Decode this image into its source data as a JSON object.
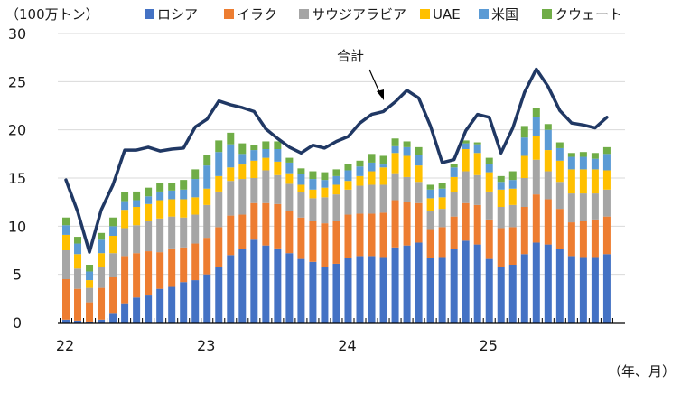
{
  "chart_data": {
    "type": "bar",
    "stacked": true,
    "unit_label": "（100万トン）",
    "xlabel": "（年、月）",
    "ylim": [
      0,
      30
    ],
    "yticks": [
      0,
      5,
      10,
      15,
      20,
      25,
      30
    ],
    "grid": true,
    "legend_position": "top",
    "xtick_labels": [
      {
        "label": "22",
        "index": 0
      },
      {
        "label": "23",
        "index": 12
      },
      {
        "label": "24",
        "index": 24
      },
      {
        "label": "25",
        "index": 36
      }
    ],
    "categories": [
      "2022-01",
      "2022-02",
      "2022-03",
      "2022-04",
      "2022-05",
      "2022-06",
      "2022-07",
      "2022-08",
      "2022-09",
      "2022-10",
      "2022-11",
      "2022-12",
      "2023-01",
      "2023-02",
      "2023-03",
      "2023-04",
      "2023-05",
      "2023-06",
      "2023-07",
      "2023-08",
      "2023-09",
      "2023-10",
      "2023-11",
      "2023-12",
      "2024-01",
      "2024-02",
      "2024-03",
      "2024-04",
      "2024-05",
      "2024-06",
      "2024-07",
      "2024-08",
      "2024-09",
      "2024-10",
      "2024-11",
      "2024-12",
      "2025-01",
      "2025-02",
      "2025-03",
      "2025-04",
      "2025-05",
      "2025-06",
      "2025-07",
      "2025-08",
      "2025-09",
      "2025-10",
      "2025-11"
    ],
    "series": [
      {
        "name": "ロシア",
        "color": "#4472C4",
        "values": [
          0.3,
          0.2,
          0.1,
          0.3,
          1.0,
          2.0,
          2.6,
          2.9,
          3.5,
          3.7,
          4.2,
          4.4,
          5.0,
          5.8,
          7.0,
          7.6,
          8.6,
          8.0,
          7.7,
          7.2,
          6.6,
          6.3,
          5.8,
          6.1,
          6.7,
          6.9,
          6.9,
          6.8,
          7.8,
          8.0,
          8.3,
          6.7,
          6.8,
          7.6,
          8.5,
          8.1,
          6.6,
          5.8,
          6.0,
          7.1,
          8.3,
          8.1,
          7.6,
          6.9,
          6.8,
          6.8,
          7.1
        ]
      },
      {
        "name": "イラク",
        "color": "#ED7D31",
        "values": [
          4.2,
          3.3,
          2.0,
          3.3,
          3.7,
          4.9,
          4.6,
          4.5,
          3.8,
          4.0,
          3.6,
          3.8,
          3.8,
          4.1,
          4.1,
          3.6,
          3.8,
          4.4,
          4.6,
          4.4,
          4.3,
          4.2,
          4.5,
          4.4,
          4.5,
          4.4,
          4.4,
          4.6,
          4.9,
          4.5,
          4.1,
          3.0,
          3.1,
          3.4,
          3.9,
          4.1,
          4.1,
          4.0,
          3.9,
          4.9,
          5.0,
          4.7,
          4.2,
          3.5,
          3.7,
          3.9,
          3.9
        ]
      },
      {
        "name": "サウジアラビア",
        "color": "#A5A5A5",
        "values": [
          3.0,
          2.1,
          1.5,
          2.2,
          2.5,
          2.9,
          2.9,
          3.1,
          3.5,
          3.3,
          3.1,
          3.0,
          3.4,
          3.7,
          3.6,
          3.7,
          2.6,
          3.4,
          3.0,
          2.8,
          2.6,
          2.4,
          2.7,
          2.8,
          2.6,
          2.9,
          3.0,
          2.9,
          2.8,
          2.6,
          2.2,
          1.9,
          1.9,
          2.5,
          3.3,
          3.1,
          2.9,
          2.2,
          2.3,
          3.0,
          3.6,
          2.9,
          2.8,
          3.0,
          2.9,
          2.7,
          2.8
        ]
      },
      {
        "name": "UAE",
        "color": "#FFC000",
        "values": [
          1.6,
          1.5,
          0.8,
          1.4,
          1.8,
          1.9,
          1.9,
          1.8,
          1.9,
          1.8,
          1.9,
          1.8,
          1.7,
          1.6,
          1.4,
          1.5,
          1.8,
          1.3,
          1.4,
          1.1,
          0.8,
          0.9,
          1.0,
          1.0,
          0.9,
          1.0,
          1.4,
          1.8,
          2.1,
          2.2,
          1.7,
          1.3,
          1.2,
          1.6,
          2.3,
          2.3,
          2.0,
          1.8,
          1.7,
          2.3,
          2.5,
          2.2,
          2.2,
          2.5,
          2.5,
          2.5,
          2.0
        ]
      },
      {
        "name": "米国",
        "color": "#5B9BD5",
        "values": [
          1.0,
          1.1,
          0.9,
          1.4,
          1.0,
          0.9,
          0.7,
          0.8,
          0.9,
          0.9,
          1.0,
          1.9,
          2.4,
          2.5,
          2.4,
          1.1,
          1.1,
          0.9,
          1.3,
          1.1,
          1.1,
          1.1,
          0.8,
          0.9,
          1.1,
          1.0,
          0.9,
          0.3,
          0.7,
          0.9,
          1.1,
          0.9,
          0.9,
          1.0,
          0.6,
          0.9,
          0.9,
          0.8,
          0.9,
          1.9,
          1.9,
          2.1,
          1.3,
          1.3,
          1.3,
          1.1,
          1.7
        ]
      },
      {
        "name": "クウェート",
        "color": "#70AD47",
        "values": [
          0.8,
          0.7,
          0.7,
          0.7,
          0.9,
          0.9,
          0.9,
          0.9,
          0.9,
          0.8,
          1.0,
          1.0,
          1.1,
          1.2,
          1.2,
          1.1,
          0.5,
          0.8,
          0.8,
          0.5,
          0.6,
          0.8,
          0.8,
          0.7,
          0.7,
          0.6,
          0.9,
          0.9,
          0.8,
          0.6,
          0.8,
          0.5,
          0.6,
          0.4,
          0.3,
          0.2,
          0.6,
          0.6,
          0.9,
          1.2,
          1.0,
          0.6,
          0.6,
          0.4,
          0.5,
          0.6,
          0.7
        ]
      }
    ],
    "total_line": {
      "name": "合計",
      "color": "#203864",
      "values": [
        14.8,
        11.5,
        7.3,
        11.7,
        14.3,
        17.9,
        17.9,
        18.2,
        17.8,
        18.0,
        18.1,
        20.3,
        21.1,
        23.0,
        22.6,
        22.3,
        21.9,
        20.1,
        19.1,
        18.2,
        17.6,
        18.4,
        18.1,
        18.8,
        19.3,
        20.7,
        21.6,
        21.9,
        22.9,
        24.1,
        23.3,
        20.4,
        16.6,
        16.9,
        19.9,
        21.6,
        21.3,
        17.6,
        20.2,
        23.9,
        26.3,
        24.5,
        22.0,
        20.7,
        20.5,
        20.2,
        21.3
      ]
    }
  }
}
